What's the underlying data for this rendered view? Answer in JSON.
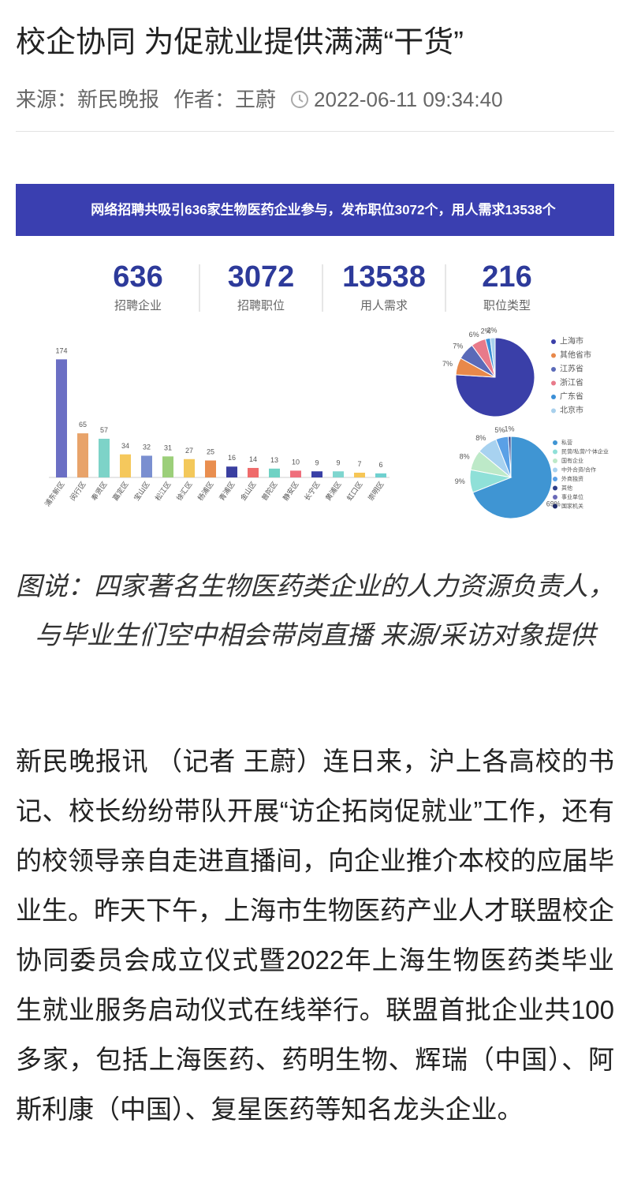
{
  "header": {
    "title": "校企协同 为促就业提供满满“干货”",
    "source": "来源：新民晚报",
    "author": "作者：王蔚",
    "datetime": "2022-06-11 09:34:40"
  },
  "infographic": {
    "banner": "网络招聘共吸引636家生物医药企业参与，发布职位3072个，用人需求13538个",
    "stats": [
      {
        "value": "636",
        "label": "招聘企业"
      },
      {
        "value": "3072",
        "label": "招聘职位"
      },
      {
        "value": "13538",
        "label": "用人需求"
      },
      {
        "value": "216",
        "label": "职位类型"
      }
    ],
    "chart_data": [
      {
        "type": "bar",
        "categories": [
          "浦东新区",
          "闵行区",
          "奉贤区",
          "嘉定区",
          "宝山区",
          "松江区",
          "徐汇区",
          "杨浦区",
          "青浦区",
          "金山区",
          "普陀区",
          "静安区",
          "长宁区",
          "黄浦区",
          "虹口区",
          "崇明区"
        ],
        "values": [
          174,
          65,
          57,
          34,
          32,
          31,
          27,
          25,
          16,
          14,
          13,
          10,
          9,
          9,
          7,
          6
        ],
        "colors": [
          "#6b6fc4",
          "#e8a36a",
          "#7dd3c8",
          "#f5c85c",
          "#7a8fd0",
          "#9ccf7a",
          "#f3c85a",
          "#e98e4f",
          "#3a3fa0",
          "#ef6b6b",
          "#6fd2c4",
          "#ef6f7c",
          "#3940a6",
          "#7fd6cf",
          "#f6c656",
          "#6fd0cf"
        ]
      },
      {
        "type": "pie",
        "categories": [
          "上海市",
          "其他省市",
          "江苏省",
          "浙江省",
          "广东省",
          "北京市"
        ],
        "values": [
          76,
          7,
          7,
          6,
          2,
          2
        ],
        "value_labels": [
          null,
          "7%",
          "7%",
          "6%",
          "2%",
          "2%"
        ],
        "colors": [
          "#3a3fa8",
          "#e8884a",
          "#5a6ab8",
          "#e87a8a",
          "#3b8fd6",
          "#a8d0ec"
        ]
      },
      {
        "type": "pie",
        "categories": [
          "私营",
          "民营/私营/个体企业",
          "国有企业",
          "中外合资/合作",
          "外商独资",
          "其他",
          "事业单位",
          "国家机关"
        ],
        "values": [
          69,
          9,
          8,
          8,
          5,
          1,
          null,
          null
        ],
        "value_labels": [
          "69%",
          "9%",
          "8%",
          "8%",
          "5%",
          "1%",
          null,
          null
        ],
        "colors": [
          "#3f95d3",
          "#8fe0d8",
          "#bde9c8",
          "#a8d2f0",
          "#5aa0e6",
          "#2d3f8a",
          "#6a6ab8",
          "#1f2a6a"
        ]
      }
    ]
  },
  "caption": "图说：四家著名生物医药类企业的人力资源负责人，与毕业生们空中相会带岗直播 来源/采访对象提供",
  "body": "新民晚报讯 （记者 王蔚）连日来，沪上各高校的书记、校长纷纷带队开展“访企拓岗促就业”工作，还有的校领导亲自走进直播间，向企业推介本校的应届毕业生。昨天下午，上海市生物医药产业人才联盟校企协同委员会成立仪式暨2022年上海生物医药类毕业生就业服务启动仪式在线举行。联盟首批企业共100多家，包括上海医药、药明生物、辉瑞（中国）、阿斯利康（中国）、复星医药等知名龙头企业。"
}
